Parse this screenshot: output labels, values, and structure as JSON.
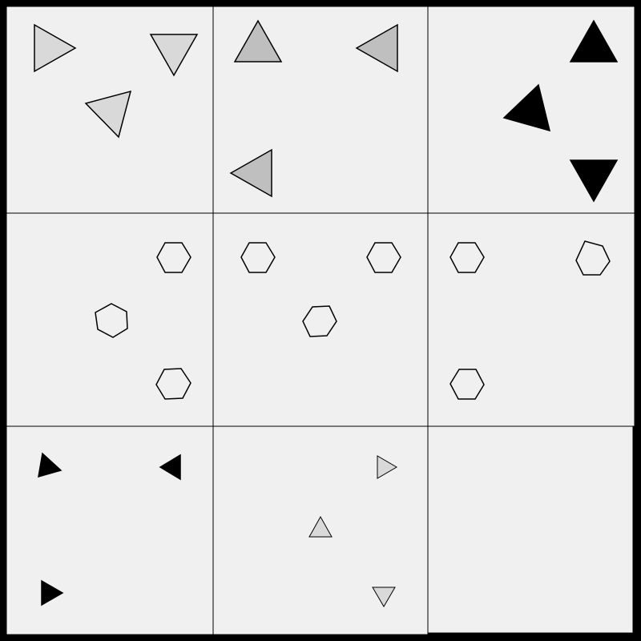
{
  "colors": {
    "frame": "#000000",
    "panel": "#f0f0f0",
    "grid_line": "#000000",
    "shape_stroke": "#000000"
  },
  "panels": [
    {
      "row": 1,
      "col": 1,
      "shapes": [
        {
          "kind": "triangle",
          "fill": "#d9d9d9",
          "facing": "right"
        },
        {
          "kind": "triangle",
          "fill": "#d9d9d9",
          "facing": "down"
        },
        {
          "kind": "triangle",
          "fill": "#d9d9d9",
          "facing": "down-left"
        }
      ]
    },
    {
      "row": 1,
      "col": 2,
      "shapes": [
        {
          "kind": "triangle",
          "fill": "#bfbfbf",
          "facing": "up"
        },
        {
          "kind": "triangle",
          "fill": "#bfbfbf",
          "facing": "left"
        },
        {
          "kind": "triangle",
          "fill": "#bfbfbf",
          "facing": "left"
        }
      ]
    },
    {
      "row": 1,
      "col": 3,
      "shapes": [
        {
          "kind": "triangle",
          "fill": "#000000",
          "facing": "up"
        },
        {
          "kind": "triangle",
          "fill": "#000000",
          "facing": "up-left"
        },
        {
          "kind": "triangle",
          "fill": "#000000",
          "facing": "down"
        }
      ]
    },
    {
      "row": 2,
      "col": 1,
      "shapes": [
        {
          "kind": "hexagon",
          "fill": "none"
        },
        {
          "kind": "hexagon",
          "fill": "none"
        },
        {
          "kind": "hexagon",
          "fill": "none"
        }
      ]
    },
    {
      "row": 2,
      "col": 2,
      "shapes": [
        {
          "kind": "hexagon",
          "fill": "none"
        },
        {
          "kind": "hexagon",
          "fill": "none"
        },
        {
          "kind": "hexagon",
          "fill": "none"
        }
      ]
    },
    {
      "row": 2,
      "col": 3,
      "shapes": [
        {
          "kind": "hexagon",
          "fill": "none"
        },
        {
          "kind": "hexagon",
          "fill": "none"
        },
        {
          "kind": "hexagon",
          "fill": "none"
        }
      ]
    },
    {
      "row": 3,
      "col": 1,
      "shapes": [
        {
          "kind": "triangle",
          "fill": "#000000",
          "facing": "right"
        },
        {
          "kind": "triangle",
          "fill": "#000000",
          "facing": "left"
        },
        {
          "kind": "triangle",
          "fill": "#000000",
          "facing": "right"
        }
      ]
    },
    {
      "row": 3,
      "col": 2,
      "shapes": [
        {
          "kind": "triangle",
          "fill": "#d9d9d9",
          "facing": "right"
        },
        {
          "kind": "triangle",
          "fill": "#d9d9d9",
          "facing": "up"
        },
        {
          "kind": "triangle",
          "fill": "#d9d9d9",
          "facing": "down"
        }
      ]
    },
    {
      "row": 3,
      "col": 3,
      "empty": true,
      "shapes": []
    }
  ]
}
